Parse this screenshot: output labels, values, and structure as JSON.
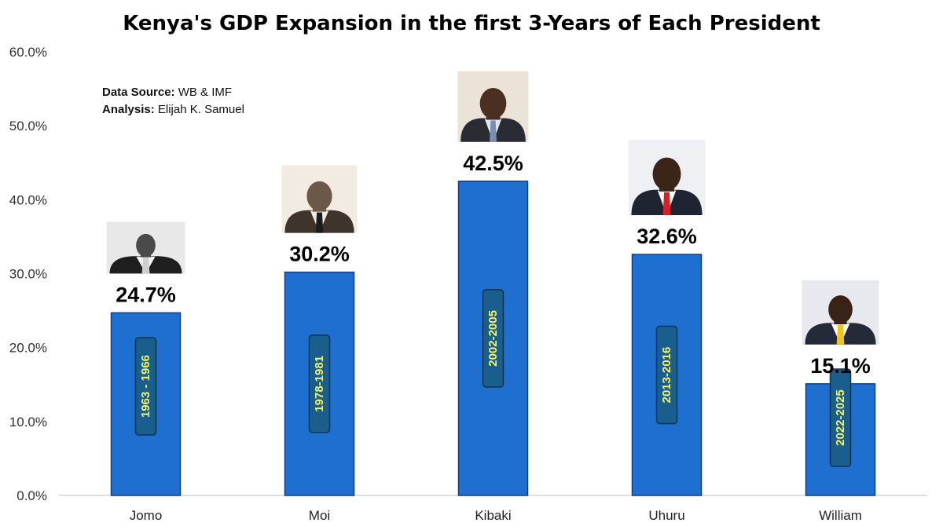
{
  "chart_data": {
    "type": "bar",
    "title": "Kenya's GDP Expansion in the first 3-Years of Each President",
    "categories": [
      "Jomo",
      "Moi",
      "Kibaki",
      "Uhuru",
      "William"
    ],
    "values": [
      24.7,
      30.2,
      42.5,
      32.6,
      15.1
    ],
    "data_labels": [
      "24.7%",
      "30.2%",
      "42.5%",
      "32.6%",
      "15.1%"
    ],
    "periods": [
      "1963 - 1966",
      "1978-1981",
      "2002-2005",
      "2013-2016",
      "2022-2025"
    ],
    "ylim": [
      0,
      60
    ],
    "yticks": [
      0,
      10,
      20,
      30,
      40,
      50,
      60
    ],
    "ytick_labels": [
      "0.0%",
      "10.0%",
      "20.0%",
      "30.0%",
      "40.0%",
      "50.0%",
      "60.0%"
    ],
    "xlabel": "",
    "ylabel": "",
    "grid": false,
    "legend": "none",
    "colors": {
      "bar": "#1f6fd1",
      "bar_edge": "#0d3f86",
      "period_box": "#1a5e8e",
      "period_box_edge": "#0d3350",
      "period_text": "#f3f36a",
      "axis": "#bfbfbf"
    }
  },
  "source": {
    "data_label": "Data Source:",
    "data_value": "WB & IMF",
    "analysis_label": "Analysis:",
    "analysis_value": "Elijah K. Samuel"
  },
  "portraits": [
    "portrait-jomo",
    "portrait-moi",
    "portrait-kibaki",
    "portrait-uhuru",
    "portrait-william"
  ]
}
